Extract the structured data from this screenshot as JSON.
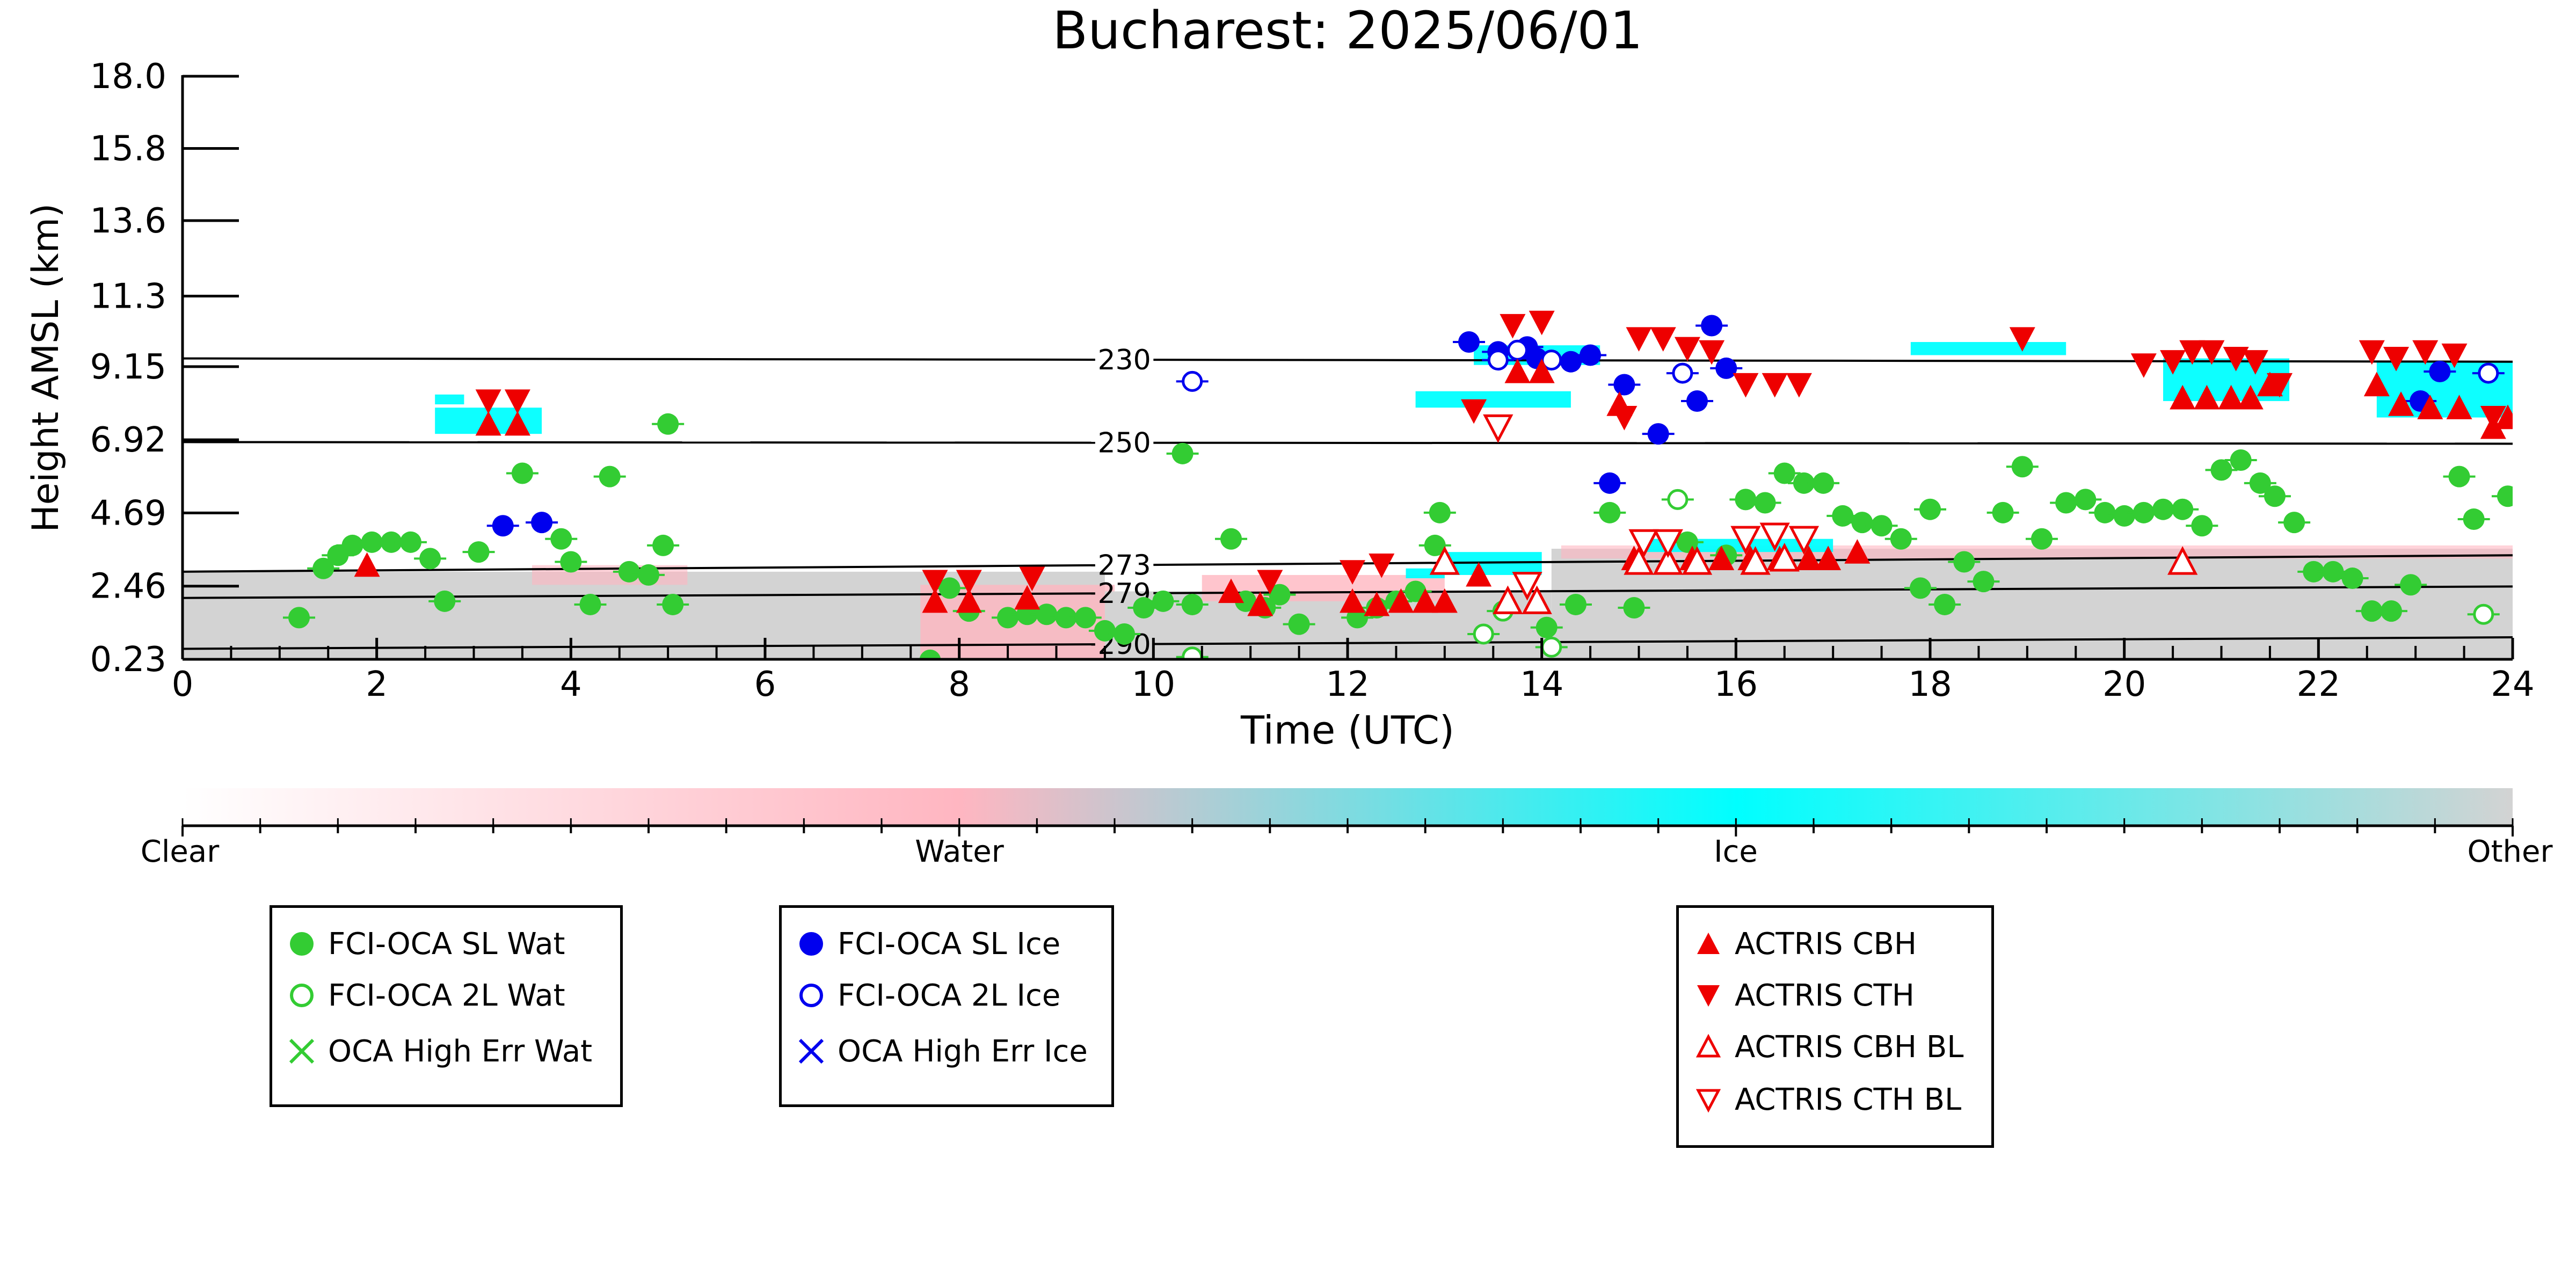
{
  "chart_data": {
    "type": "scatter",
    "title": "Bucharest: 2025/06/01",
    "xlabel": "Time (UTC)",
    "ylabel": "Height AMSL (km)",
    "xlim": [
      0,
      24
    ],
    "ylim": [
      0.23,
      18.0
    ],
    "x_ticks": [
      "0",
      "2",
      "4",
      "6",
      "8",
      "10",
      "12",
      "14",
      "16",
      "18",
      "20",
      "22",
      "24"
    ],
    "y_ticks": [
      "0.23",
      "2.46",
      "4.69",
      "6.92",
      "9.15",
      "11.3",
      "13.6",
      "15.8",
      "18.0"
    ],
    "y_tick_values": [
      0.23,
      2.46,
      4.69,
      6.92,
      9.15,
      11.3,
      13.6,
      15.8,
      18.0
    ],
    "isotherms": [
      {
        "label": "230",
        "y_start": 9.4,
        "y_end": 9.3
      },
      {
        "label": "250",
        "y_start": 6.85,
        "y_end": 6.8
      },
      {
        "label": "273",
        "y_start": 2.9,
        "y_end": 3.4
      },
      {
        "label": "279",
        "y_start": 2.1,
        "y_end": 2.45
      },
      {
        "label": "290",
        "y_start": 0.55,
        "y_end": 0.9
      }
    ],
    "colorbar": {
      "labels": [
        "Clear",
        "Water",
        "Ice",
        "Other"
      ],
      "colors": [
        "#ffffff",
        "#ffb6c1",
        "#00ffff",
        "#d3d3d3"
      ]
    },
    "colors": {
      "water": "#33cc33",
      "ice": "#0000ee",
      "actris": "#ee0000",
      "ice_mask": "#00ffff",
      "other_mask": "#d3d3d3",
      "water_mask": "#ffb6c1"
    },
    "legend": {
      "fci_water": [
        "FCI-OCA SL Wat",
        "FCI-OCA 2L Wat",
        "OCA High Err Wat"
      ],
      "fci_ice": [
        "FCI-OCA SL Ice",
        "FCI-OCA 2L Ice",
        "OCA High Err Ice"
      ],
      "actris": [
        "ACTRIS CBH",
        "ACTRIS CTH",
        "ACTRIS CBH BL",
        "ACTRIS CTH BL"
      ]
    },
    "series": [
      {
        "name": "FCI-OCA SL Wat",
        "points": [
          [
            1.2,
            1.5
          ],
          [
            1.45,
            3.0
          ],
          [
            1.6,
            3.4
          ],
          [
            1.75,
            3.7
          ],
          [
            1.95,
            3.8
          ],
          [
            2.15,
            3.8
          ],
          [
            2.35,
            3.8
          ],
          [
            2.55,
            3.3
          ],
          [
            2.7,
            2.0
          ],
          [
            3.05,
            3.5
          ],
          [
            3.5,
            5.9
          ],
          [
            3.9,
            3.9
          ],
          [
            4.0,
            3.2
          ],
          [
            4.2,
            1.9
          ],
          [
            4.4,
            5.8
          ],
          [
            4.6,
            2.9
          ],
          [
            4.8,
            2.8
          ],
          [
            4.95,
            3.7
          ],
          [
            5.0,
            7.4
          ],
          [
            5.05,
            1.9
          ],
          [
            7.7,
            0.2
          ],
          [
            7.9,
            2.4
          ],
          [
            8.1,
            1.7
          ],
          [
            8.5,
            1.5
          ],
          [
            8.7,
            1.6
          ],
          [
            8.9,
            1.6
          ],
          [
            9.1,
            1.5
          ],
          [
            9.3,
            1.5
          ],
          [
            9.5,
            1.1
          ],
          [
            9.7,
            1.0
          ],
          [
            9.9,
            1.8
          ],
          [
            10.1,
            2.0
          ],
          [
            10.3,
            6.5
          ],
          [
            10.4,
            1.9
          ],
          [
            10.8,
            3.9
          ],
          [
            10.95,
            2.0
          ],
          [
            11.15,
            1.8
          ],
          [
            11.3,
            2.2
          ],
          [
            11.5,
            1.3
          ],
          [
            12.1,
            1.5
          ],
          [
            12.3,
            1.8
          ],
          [
            12.5,
            2.0
          ],
          [
            12.7,
            2.3
          ],
          [
            12.9,
            3.7
          ],
          [
            12.95,
            4.7
          ],
          [
            14.05,
            1.2
          ],
          [
            14.35,
            1.9
          ],
          [
            14.7,
            4.7
          ],
          [
            14.95,
            1.8
          ],
          [
            15.5,
            3.8
          ],
          [
            15.9,
            3.4
          ],
          [
            16.1,
            5.1
          ],
          [
            16.3,
            5.0
          ],
          [
            16.5,
            5.9
          ],
          [
            16.7,
            5.6
          ],
          [
            16.9,
            5.6
          ],
          [
            17.1,
            4.6
          ],
          [
            17.3,
            4.4
          ],
          [
            17.5,
            4.3
          ],
          [
            17.7,
            3.9
          ],
          [
            17.9,
            2.4
          ],
          [
            18.0,
            4.8
          ],
          [
            18.15,
            1.9
          ],
          [
            18.35,
            3.2
          ],
          [
            18.55,
            2.6
          ],
          [
            18.75,
            4.7
          ],
          [
            18.95,
            6.1
          ],
          [
            19.15,
            3.9
          ],
          [
            19.4,
            5.0
          ],
          [
            19.6,
            5.1
          ],
          [
            19.8,
            4.7
          ],
          [
            20.0,
            4.6
          ],
          [
            20.2,
            4.7
          ],
          [
            20.4,
            4.8
          ],
          [
            20.6,
            4.8
          ],
          [
            20.8,
            4.3
          ],
          [
            21.0,
            6.0
          ],
          [
            21.2,
            6.3
          ],
          [
            21.4,
            5.6
          ],
          [
            21.55,
            5.2
          ],
          [
            21.75,
            4.4
          ],
          [
            21.95,
            2.9
          ],
          [
            22.15,
            2.9
          ],
          [
            22.35,
            2.7
          ],
          [
            22.55,
            1.7
          ],
          [
            22.75,
            1.7
          ],
          [
            22.95,
            2.5
          ],
          [
            23.45,
            5.8
          ],
          [
            23.6,
            4.5
          ],
          [
            23.95,
            5.2
          ]
        ]
      },
      {
        "name": "FCI-OCA 2L Wat",
        "points": [
          [
            10.4,
            0.3
          ],
          [
            13.4,
            1.0
          ],
          [
            13.6,
            1.7
          ],
          [
            14.1,
            0.6
          ],
          [
            15.4,
            5.1
          ],
          [
            23.7,
            1.6
          ]
        ]
      },
      {
        "name": "FCI-OCA SL Ice",
        "points": [
          [
            3.3,
            4.3
          ],
          [
            3.7,
            4.4
          ],
          [
            13.25,
            9.9
          ],
          [
            13.55,
            9.6
          ],
          [
            13.85,
            9.75
          ],
          [
            13.95,
            9.4
          ],
          [
            14.3,
            9.3
          ],
          [
            14.5,
            9.5
          ],
          [
            14.7,
            5.6
          ],
          [
            14.85,
            8.6
          ],
          [
            15.2,
            7.1
          ],
          [
            15.6,
            8.1
          ],
          [
            15.75,
            10.4
          ],
          [
            15.9,
            9.1
          ],
          [
            23.05,
            8.1
          ],
          [
            23.25,
            9.0
          ]
        ]
      },
      {
        "name": "FCI-OCA 2L Ice",
        "points": [
          [
            10.4,
            8.7
          ],
          [
            13.55,
            9.35
          ],
          [
            13.75,
            9.65
          ],
          [
            14.1,
            9.35
          ],
          [
            15.45,
            8.95
          ],
          [
            23.75,
            8.95
          ]
        ]
      },
      {
        "name": "ACTRIS CBH",
        "points": [
          [
            1.9,
            3.1
          ],
          [
            3.15,
            7.4
          ],
          [
            3.45,
            7.4
          ],
          [
            7.75,
            2.0
          ],
          [
            8.1,
            2.0
          ],
          [
            8.7,
            2.1
          ],
          [
            10.8,
            2.3
          ],
          [
            11.1,
            1.9
          ],
          [
            12.05,
            2.0
          ],
          [
            12.3,
            1.9
          ],
          [
            12.55,
            2.0
          ],
          [
            12.8,
            2.0
          ],
          [
            13.0,
            2.0
          ],
          [
            13.35,
            2.8
          ],
          [
            13.75,
            9.0
          ],
          [
            14.0,
            9.0
          ],
          [
            14.8,
            8.0
          ],
          [
            14.95,
            3.3
          ],
          [
            15.3,
            3.3
          ],
          [
            15.55,
            3.3
          ],
          [
            15.85,
            3.3
          ],
          [
            16.15,
            3.3
          ],
          [
            16.45,
            3.3
          ],
          [
            16.75,
            3.3
          ],
          [
            16.95,
            3.3
          ],
          [
            17.25,
            3.5
          ],
          [
            20.6,
            8.2
          ],
          [
            20.85,
            8.2
          ],
          [
            21.1,
            8.2
          ],
          [
            21.3,
            8.2
          ],
          [
            21.5,
            8.6
          ],
          [
            22.6,
            8.6
          ],
          [
            22.85,
            8.0
          ],
          [
            23.15,
            7.9
          ],
          [
            23.45,
            7.9
          ],
          [
            23.8,
            7.3
          ],
          [
            23.95,
            7.6
          ]
        ]
      },
      {
        "name": "ACTRIS CTH",
        "points": [
          [
            3.15,
            8.1
          ],
          [
            3.45,
            8.1
          ],
          [
            7.75,
            2.6
          ],
          [
            8.1,
            2.6
          ],
          [
            8.75,
            2.7
          ],
          [
            11.2,
            2.6
          ],
          [
            12.05,
            2.9
          ],
          [
            12.35,
            3.1
          ],
          [
            13.3,
            7.8
          ],
          [
            13.7,
            10.4
          ],
          [
            14.0,
            10.5
          ],
          [
            14.85,
            7.6
          ],
          [
            15.0,
            10.0
          ],
          [
            15.25,
            10.0
          ],
          [
            15.5,
            9.7
          ],
          [
            15.75,
            9.6
          ],
          [
            16.1,
            8.6
          ],
          [
            16.4,
            8.6
          ],
          [
            16.65,
            8.6
          ],
          [
            18.95,
            10.0
          ],
          [
            20.2,
            9.2
          ],
          [
            20.5,
            9.3
          ],
          [
            20.7,
            9.6
          ],
          [
            20.9,
            9.6
          ],
          [
            21.15,
            9.4
          ],
          [
            21.35,
            9.3
          ],
          [
            21.6,
            8.6
          ],
          [
            22.55,
            9.6
          ],
          [
            22.8,
            9.4
          ],
          [
            23.1,
            9.6
          ],
          [
            23.4,
            9.5
          ],
          [
            23.8,
            7.6
          ]
        ]
      },
      {
        "name": "ACTRIS CBH BL",
        "points": [
          [
            13.0,
            3.2
          ],
          [
            13.65,
            2.0
          ],
          [
            13.95,
            2.0
          ],
          [
            15.0,
            3.2
          ],
          [
            15.3,
            3.2
          ],
          [
            15.6,
            3.2
          ],
          [
            16.2,
            3.2
          ],
          [
            16.5,
            3.3
          ],
          [
            20.6,
            3.2
          ]
        ]
      },
      {
        "name": "ACTRIS CTH BL",
        "points": [
          [
            13.55,
            7.3
          ],
          [
            13.85,
            2.5
          ],
          [
            15.05,
            3.8
          ],
          [
            15.3,
            3.8
          ],
          [
            16.1,
            3.9
          ],
          [
            16.4,
            4.0
          ],
          [
            16.7,
            3.9
          ]
        ]
      }
    ]
  }
}
